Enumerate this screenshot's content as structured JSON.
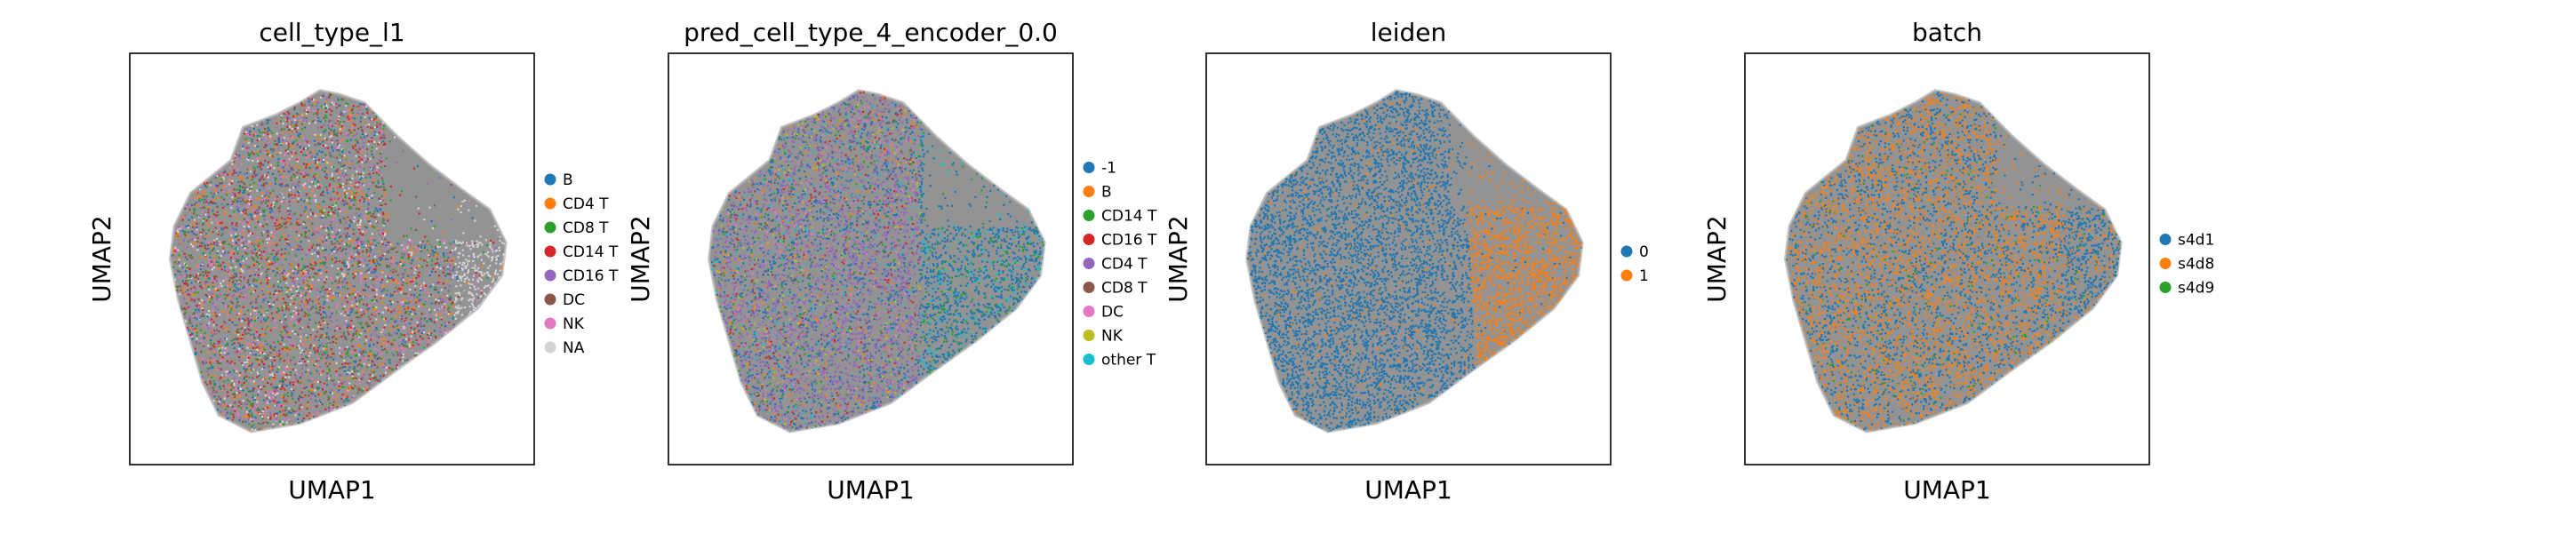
{
  "figure_panels": 4,
  "chart_data": [
    {
      "type": "scatter",
      "title": "cell_type_l1",
      "xlabel": "UMAP1",
      "ylabel": "UMAP2",
      "grid": false,
      "legend_placement": "right",
      "series": [
        {
          "name": "B",
          "color": "#1f77b4"
        },
        {
          "name": "CD4 T",
          "color": "#ff7f0e"
        },
        {
          "name": "CD8 T",
          "color": "#2ca02c"
        },
        {
          "name": "CD14 T",
          "color": "#d62728"
        },
        {
          "name": "CD16 T",
          "color": "#9467bd"
        },
        {
          "name": "DC",
          "color": "#8c564b"
        },
        {
          "name": "NK",
          "color": "#e377c2"
        },
        {
          "name": "NA",
          "color": "#d3d3d3"
        }
      ]
    },
    {
      "type": "scatter",
      "title": "pred_cell_type_4_encoder_0.0",
      "xlabel": "UMAP1",
      "ylabel": "UMAP2",
      "grid": false,
      "legend_placement": "right",
      "series": [
        {
          "name": "-1",
          "color": "#1f77b4"
        },
        {
          "name": "B",
          "color": "#ff7f0e"
        },
        {
          "name": "CD14 T",
          "color": "#2ca02c"
        },
        {
          "name": "CD16 T",
          "color": "#d62728"
        },
        {
          "name": "CD4 T",
          "color": "#9467bd"
        },
        {
          "name": "CD8 T",
          "color": "#8c564b"
        },
        {
          "name": "DC",
          "color": "#e377c2"
        },
        {
          "name": "NK",
          "color": "#bcbd22"
        },
        {
          "name": "other T",
          "color": "#17becf"
        }
      ]
    },
    {
      "type": "scatter",
      "title": "leiden",
      "xlabel": "UMAP1",
      "ylabel": "UMAP2",
      "grid": false,
      "legend_placement": "right",
      "series": [
        {
          "name": "0",
          "color": "#1f77b4"
        },
        {
          "name": "1",
          "color": "#ff7f0e"
        }
      ]
    },
    {
      "type": "scatter",
      "title": "batch",
      "xlabel": "UMAP1",
      "ylabel": "UMAP2",
      "grid": false,
      "legend_placement": "right",
      "series": [
        {
          "name": "s4d1",
          "color": "#1f77b4"
        },
        {
          "name": "s4d8",
          "color": "#ff7f0e"
        },
        {
          "name": "s4d9",
          "color": "#2ca02c"
        }
      ]
    }
  ],
  "colors": {
    "background": "#ffffff",
    "edge_bundle": "#808080",
    "frame": "#000000"
  }
}
